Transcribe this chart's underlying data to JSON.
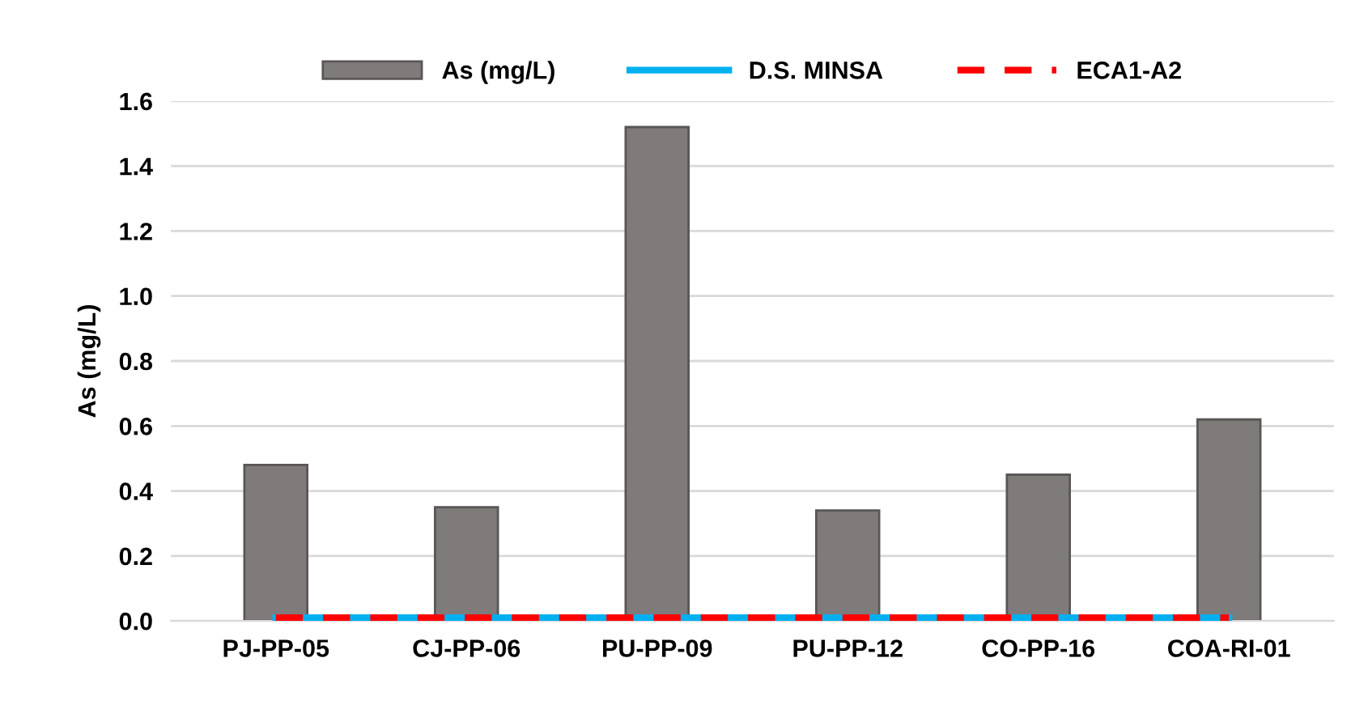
{
  "chart_data": {
    "type": "bar",
    "ylabel": "As (mg/L)",
    "categories": [
      "PJ-PP-05",
      "CJ-PP-06",
      "PU-PP-09",
      "PU-PP-12",
      "CO-PP-16",
      "COA-RI-01"
    ],
    "series": [
      {
        "name": "As (mg/L)",
        "color": "#7f7b7b",
        "values": [
          0.48,
          0.35,
          1.52,
          0.34,
          0.45,
          0.62
        ]
      },
      {
        "name": "D.S. MINSA",
        "type": "line",
        "color": "#00b0f0",
        "line_style": "solid",
        "values": [
          0.01,
          0.01,
          0.01,
          0.01,
          0.01,
          0.01
        ]
      },
      {
        "name": "ECA1-A2",
        "type": "line",
        "color": "#ff0000",
        "line_style": "dashed",
        "values": [
          0.01,
          0.01,
          0.01,
          0.01,
          0.01,
          0.01
        ]
      }
    ],
    "ylim": [
      0,
      1.6
    ],
    "yticks": [
      "0.0",
      0.2,
      0.4,
      0.6,
      0.8,
      "1.0",
      1.2,
      1.4,
      1.6
    ],
    "grid": "y",
    "legend": "top"
  }
}
